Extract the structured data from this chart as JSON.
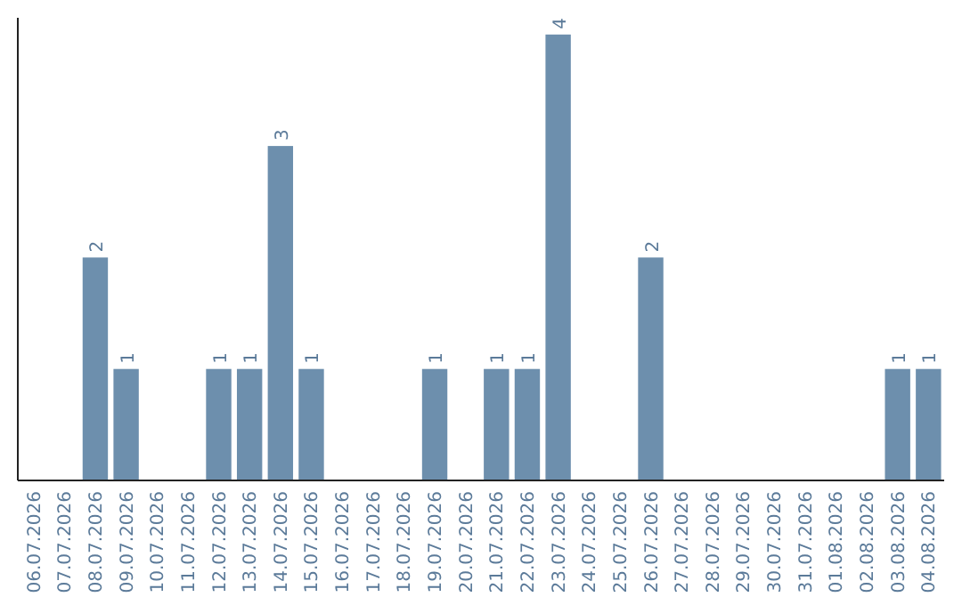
{
  "chart_data": {
    "type": "bar",
    "categories": [
      "06.07.2026",
      "07.07.2026",
      "08.07.2026",
      "09.07.2026",
      "10.07.2026",
      "11.07.2026",
      "12.07.2026",
      "13.07.2026",
      "14.07.2026",
      "15.07.2026",
      "16.07.2026",
      "17.07.2026",
      "18.07.2026",
      "19.07.2026",
      "20.07.2026",
      "21.07.2026",
      "22.07.2026",
      "23.07.2026",
      "24.07.2026",
      "25.07.2026",
      "26.07.2026",
      "27.07.2026",
      "28.07.2026",
      "29.07.2026",
      "30.07.2026",
      "31.07.2026",
      "01.08.2026",
      "02.08.2026",
      "03.08.2026",
      "04.08.2026"
    ],
    "values": [
      0,
      0,
      2,
      1,
      0,
      0,
      1,
      1,
      3,
      1,
      0,
      0,
      0,
      1,
      0,
      1,
      1,
      4,
      0,
      0,
      2,
      0,
      0,
      0,
      0,
      0,
      0,
      0,
      1,
      1
    ],
    "value_labels": [
      null,
      null,
      "2",
      "1",
      null,
      null,
      "1",
      "1",
      "3",
      "1",
      null,
      null,
      null,
      "1",
      null,
      "1",
      "1",
      "4",
      null,
      null,
      "2",
      null,
      null,
      null,
      null,
      null,
      null,
      null,
      "1",
      "1"
    ],
    "color": "#6d8fad",
    "ylim": [
      0,
      4.15
    ],
    "tick_labels": "x",
    "grid": false
  }
}
